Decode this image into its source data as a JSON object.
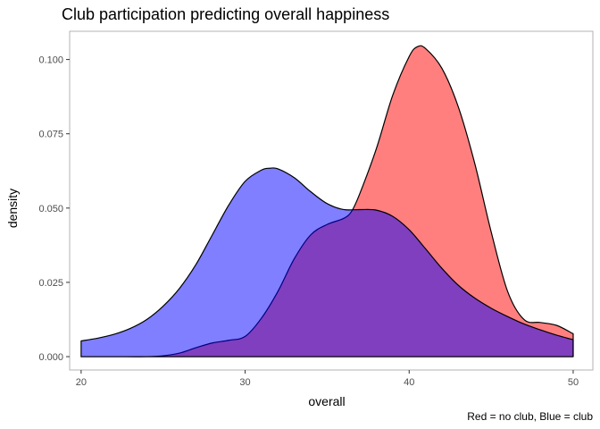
{
  "chart_data": {
    "type": "area",
    "title": "Club participation predicting overall happiness",
    "xlabel": "overall",
    "ylabel": "density",
    "caption": "Red = no club, Blue = club",
    "xlim": [
      19.3,
      51.2
    ],
    "ylim": [
      -0.0045,
      0.1095
    ],
    "x_ticks": [
      20,
      30,
      40,
      50
    ],
    "y_ticks": [
      0.0,
      0.025,
      0.05,
      0.075,
      0.1
    ],
    "y_tick_labels": [
      "0.000",
      "0.025",
      "0.050",
      "0.075",
      "0.100"
    ],
    "grid": false,
    "legend": "none",
    "series": [
      {
        "color": "#ff0000",
        "fill_opacity": 0.5,
        "x": [
          20,
          22,
          24,
          25,
          26,
          27,
          28,
          29,
          30,
          31,
          32,
          33,
          34,
          35,
          36,
          36.5,
          37,
          38,
          39,
          40,
          40.5,
          41,
          42,
          43,
          44,
          45,
          46,
          47,
          48,
          49,
          50
        ],
        "values": [
          0.0,
          0.0,
          0.0,
          0.0003,
          0.0012,
          0.003,
          0.0046,
          0.0055,
          0.0068,
          0.013,
          0.022,
          0.033,
          0.041,
          0.0445,
          0.0465,
          0.049,
          0.055,
          0.07,
          0.088,
          0.101,
          0.1043,
          0.1037,
          0.097,
          0.084,
          0.065,
          0.042,
          0.022,
          0.0125,
          0.0115,
          0.0105,
          0.0077
        ]
      },
      {
        "color": "#0000ff",
        "fill_opacity": 0.5,
        "x": [
          20,
          21,
          22,
          23,
          24,
          25,
          26,
          27,
          28,
          29,
          30,
          31,
          31.5,
          32,
          33,
          34,
          35,
          36,
          37,
          38,
          39,
          40,
          41,
          42,
          43,
          44,
          45,
          46,
          47,
          48,
          49,
          50
        ],
        "values": [
          0.0053,
          0.0062,
          0.0075,
          0.0095,
          0.0125,
          0.017,
          0.023,
          0.031,
          0.041,
          0.051,
          0.059,
          0.0628,
          0.0634,
          0.0632,
          0.0602,
          0.0555,
          0.0515,
          0.0495,
          0.0495,
          0.0493,
          0.0472,
          0.0427,
          0.0363,
          0.0297,
          0.024,
          0.0197,
          0.0163,
          0.0135,
          0.011,
          0.009,
          0.0072,
          0.0057
        ]
      }
    ]
  }
}
